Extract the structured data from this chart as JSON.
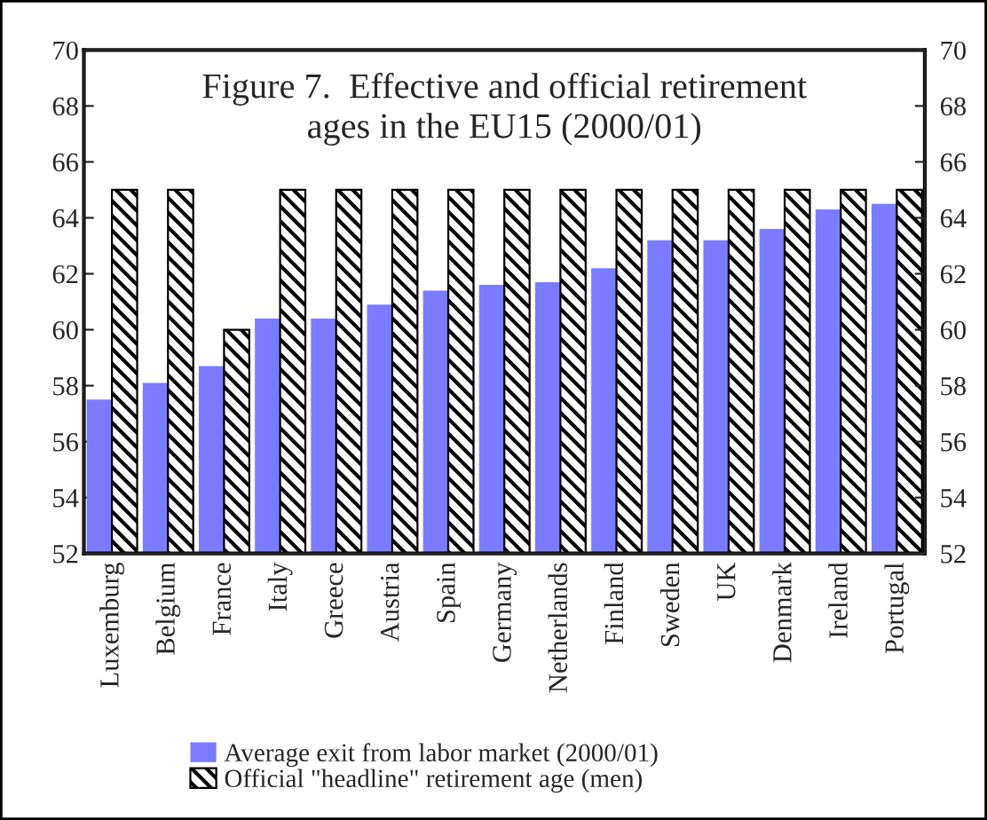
{
  "chart_data": {
    "type": "bar",
    "title": "Figure 7.  Effective and official retirement ages in the EU15 (2000/01)",
    "categories": [
      "Luxemburg",
      "Belgium",
      "France",
      "Italy",
      "Greece",
      "Austria",
      "Spain",
      "Germany",
      "Netherlands",
      "Finland",
      "Sweden",
      "UK",
      "Denmark",
      "Ireland",
      "Portugal"
    ],
    "series": [
      {
        "name": "Average exit from labor market (2000/01)",
        "color": "#7b7bff",
        "values": [
          57.5,
          58.1,
          58.7,
          60.4,
          60.4,
          60.9,
          61.4,
          61.6,
          61.7,
          62.2,
          63.2,
          63.2,
          63.6,
          64.3,
          64.5
        ]
      },
      {
        "name": "Official \"headline\" retirement age (men)",
        "color": "#000000",
        "values": [
          65,
          65,
          60,
          65,
          65,
          65,
          65,
          65,
          65,
          65,
          65,
          65,
          65,
          65,
          65
        ]
      }
    ],
    "ylim": [
      52,
      70
    ],
    "yticks": [
      52,
      54,
      56,
      58,
      60,
      62,
      64,
      66,
      68,
      70
    ],
    "y2lim": [
      52,
      70
    ],
    "y2ticks": [
      52,
      54,
      56,
      58,
      60,
      62,
      64,
      66,
      68,
      70
    ],
    "grid": false,
    "legend": "bottom"
  }
}
